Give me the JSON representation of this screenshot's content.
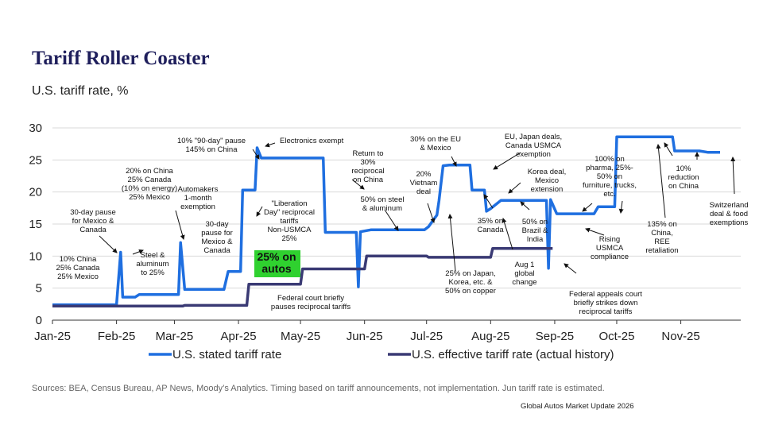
{
  "header": {
    "title": "Tariff Roller Coaster",
    "subtitle": "U.S. tariff rate, %"
  },
  "footer": {
    "source": "Sources: BEA, Census Bureau, AP News, Moody’s Analytics. Timing based on tariff announcements, not implementation. Jun tariff rate is estimated.",
    "deck": "Global Autos Market Update 2026"
  },
  "colors": {
    "stated": "#1f6fe0",
    "effective": "#3a3a74",
    "highlight_bg": "#2fd12f",
    "grid": "#d9d9d9"
  },
  "chart_data": {
    "type": "line",
    "xlabel": "",
    "ylabel": "",
    "x_ticks": [
      "Jan-25",
      "Feb-25",
      "Mar-25",
      "Apr-25",
      "May-25",
      "Jun-25",
      "Jul-25",
      "Aug-25",
      "Sep-25",
      "Oct-25",
      "Nov-25"
    ],
    "ylim": [
      0,
      30
    ],
    "y_ticks": [
      0,
      5,
      10,
      15,
      20,
      25,
      30
    ],
    "grid": true,
    "legend_position": "bottom",
    "series": [
      {
        "name": "U.S. stated tariff rate",
        "points": [
          [
            "2025-01-01",
            2.4
          ],
          [
            "2025-02-01",
            2.4
          ],
          [
            "2025-02-03",
            10.6
          ],
          [
            "2025-02-04",
            3.6
          ],
          [
            "2025-02-10",
            3.6
          ],
          [
            "2025-02-12",
            4.0
          ],
          [
            "2025-03-03",
            4.0
          ],
          [
            "2025-03-04",
            12.1
          ],
          [
            "2025-03-06",
            4.8
          ],
          [
            "2025-03-25",
            4.8
          ],
          [
            "2025-03-27",
            7.6
          ],
          [
            "2025-04-02",
            7.6
          ],
          [
            "2025-04-03",
            20.3
          ],
          [
            "2025-04-09",
            20.3
          ],
          [
            "2025-04-10",
            26.9
          ],
          [
            "2025-04-12",
            25.3
          ],
          [
            "2025-05-12",
            25.3
          ],
          [
            "2025-05-13",
            13.7
          ],
          [
            "2025-05-28",
            13.7
          ],
          [
            "2025-05-29",
            5.2
          ],
          [
            "2025-05-30",
            13.8
          ],
          [
            "2025-06-04",
            14.1
          ],
          [
            "2025-06-30",
            14.1
          ],
          [
            "2025-07-02",
            14.6
          ],
          [
            "2025-07-06",
            16.4
          ],
          [
            "2025-07-07",
            18.6
          ],
          [
            "2025-07-09",
            24.1
          ],
          [
            "2025-07-12",
            24.2
          ],
          [
            "2025-07-22",
            24.2
          ],
          [
            "2025-07-23",
            20.3
          ],
          [
            "2025-07-29",
            20.3
          ],
          [
            "2025-07-30",
            17.0
          ],
          [
            "2025-08-01",
            17.4
          ],
          [
            "2025-08-06",
            18.7
          ],
          [
            "2025-08-28",
            18.7
          ],
          [
            "2025-08-29",
            8.1
          ],
          [
            "2025-08-30",
            18.8
          ],
          [
            "2025-09-02",
            16.6
          ],
          [
            "2025-09-20",
            16.6
          ],
          [
            "2025-09-22",
            17.7
          ],
          [
            "2025-09-30",
            17.7
          ],
          [
            "2025-10-01",
            28.6
          ],
          [
            "2025-10-28",
            28.6
          ],
          [
            "2025-10-29",
            26.4
          ],
          [
            "2025-11-10",
            26.4
          ],
          [
            "2025-11-14",
            26.2
          ],
          [
            "2025-11-20",
            26.2
          ]
        ]
      },
      {
        "name": "U.S. effective tariff rate (actual history)",
        "points": [
          [
            "2025-01-01",
            2.2
          ],
          [
            "2025-03-05",
            2.2
          ],
          [
            "2025-03-06",
            2.3
          ],
          [
            "2025-04-05",
            2.3
          ],
          [
            "2025-04-06",
            5.6
          ],
          [
            "2025-05-01",
            5.6
          ],
          [
            "2025-05-02",
            8.0
          ],
          [
            "2025-06-01",
            8.0
          ],
          [
            "2025-06-02",
            10.0
          ],
          [
            "2025-07-01",
            10.0
          ],
          [
            "2025-07-02",
            9.8
          ],
          [
            "2025-08-01",
            9.8
          ],
          [
            "2025-08-02",
            11.2
          ],
          [
            "2025-08-31",
            11.2
          ]
        ]
      }
    ],
    "annotations": [
      "10% China\n25% Canada\n25% Mexico",
      "30-day pause\nfor Mexico &\nCanada",
      "20% on China\n25% Canada\n(10% on energy)\n25% Mexico",
      "Steel &\naluminum\nto 25%",
      "Automakers\n1-month\nexemption",
      "30-day\npause for\nMexico &\nCanada",
      "10% \"90-day\" pause\n145% on China",
      "Electronics exempt",
      "\"Liberation\nDay\" reciprocal\ntariffs\nNon-USMCA\n25%",
      "25% on\nautos",
      "Return to\n30%\nreciprocal\non China",
      "Federal court briefly\npauses reciprocal tariffs",
      "50% on steel\n& aluminum",
      "20%\nVietnam\ndeal",
      "30% on the EU\n& Mexico",
      "25% on Japan,\nKorea, etc. &\n50% on copper",
      "35% on\nCanada",
      "EU, Japan deals,\nCanada USMCA\nexemption",
      "Korea deal,\nMexico\nextension",
      "Aug 1\nglobal\nchange",
      "50% on\nBrazil &\nIndia",
      "Federal appeals court\nbriefly strikes down\nreciprocal tariffs",
      "100% on\npharma, 25%-\n50% on\nfurniture, trucks,\netc.",
      "Rising\nUSMCA\ncompliance",
      "135% on\nChina,\nREE\nretaliation",
      "10%\nreduction\non China",
      "Switzerland\ndeal & food\nexemptions"
    ]
  }
}
